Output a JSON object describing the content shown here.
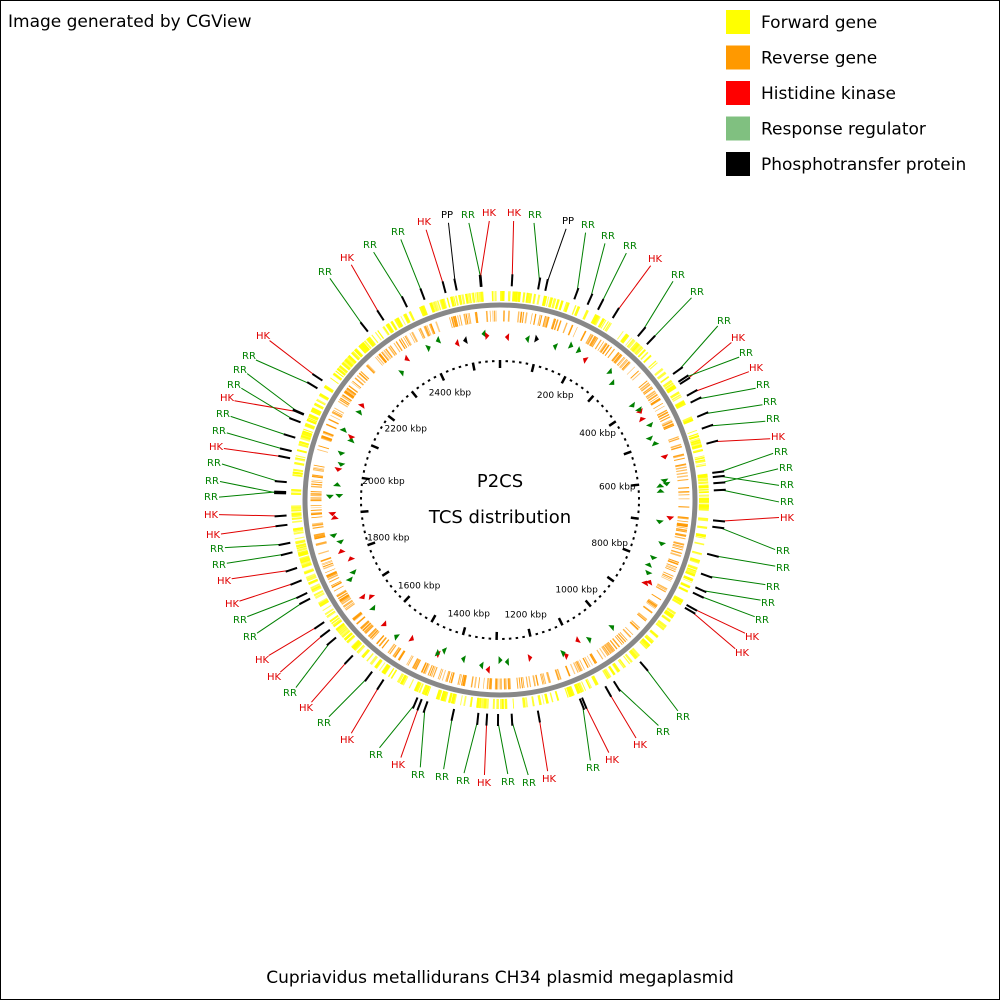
{
  "header": {
    "title": "Image generated by CGView"
  },
  "legend": [
    {
      "label": "Forward gene",
      "color": "#ffff00"
    },
    {
      "label": "Reverse gene",
      "color": "#ff9900"
    },
    {
      "label": "Histidine kinase",
      "color": "#ff0000"
    },
    {
      "label": "Response regulator",
      "color": "#80c080"
    },
    {
      "label": "Phosphotransfer protein",
      "color": "#000000"
    }
  ],
  "map": {
    "title": "P2CS",
    "subtitle": "TCS distribution",
    "scale_labels": [
      "200 kbp",
      "400 kbp",
      "600 kbp",
      "800 kbp",
      "1000 kbp",
      "1200 kbp",
      "1400 kbp",
      "1600 kbp",
      "1800 kbp",
      "2000 kbp",
      "2200 kbp",
      "2400 kbp"
    ],
    "feature_labels": [
      {
        "text": "RR",
        "color": "#008000"
      },
      {
        "text": "HK",
        "color": "#e00000"
      },
      {
        "text": "RR",
        "color": "#008000"
      },
      {
        "text": "RR",
        "color": "#008000"
      },
      {
        "text": "HK",
        "color": "#e00000"
      },
      {
        "text": "PP",
        "color": "#000000"
      },
      {
        "text": "RR",
        "color": "#008000"
      },
      {
        "text": "HK",
        "color": "#e00000"
      },
      {
        "text": "HK",
        "color": "#e00000"
      },
      {
        "text": "RR",
        "color": "#008000"
      },
      {
        "text": "PP",
        "color": "#000000"
      },
      {
        "text": "RR",
        "color": "#008000"
      },
      {
        "text": "RR",
        "color": "#008000"
      },
      {
        "text": "RR",
        "color": "#008000"
      },
      {
        "text": "HK",
        "color": "#e00000"
      },
      {
        "text": "RR",
        "color": "#008000"
      },
      {
        "text": "RR",
        "color": "#008000"
      },
      {
        "text": "RR",
        "color": "#008000"
      },
      {
        "text": "HK",
        "color": "#e00000"
      },
      {
        "text": "RR",
        "color": "#008000"
      },
      {
        "text": "HK",
        "color": "#e00000"
      },
      {
        "text": "RR",
        "color": "#008000"
      },
      {
        "text": "RR",
        "color": "#008000"
      },
      {
        "text": "RR",
        "color": "#008000"
      },
      {
        "text": "HK",
        "color": "#e00000"
      },
      {
        "text": "RR",
        "color": "#008000"
      },
      {
        "text": "RR",
        "color": "#008000"
      },
      {
        "text": "RR",
        "color": "#008000"
      },
      {
        "text": "RR",
        "color": "#008000"
      },
      {
        "text": "HK",
        "color": "#e00000"
      },
      {
        "text": "RR",
        "color": "#008000"
      },
      {
        "text": "RR",
        "color": "#008000"
      },
      {
        "text": "RR",
        "color": "#008000"
      },
      {
        "text": "RR",
        "color": "#008000"
      },
      {
        "text": "RR",
        "color": "#008000"
      },
      {
        "text": "HK",
        "color": "#e00000"
      },
      {
        "text": "HK",
        "color": "#e00000"
      },
      {
        "text": "RR",
        "color": "#008000"
      },
      {
        "text": "RR",
        "color": "#008000"
      },
      {
        "text": "HK",
        "color": "#e00000"
      },
      {
        "text": "HK",
        "color": "#e00000"
      },
      {
        "text": "RR",
        "color": "#008000"
      },
      {
        "text": "HK",
        "color": "#e00000"
      },
      {
        "text": "RR",
        "color": "#008000"
      },
      {
        "text": "RR",
        "color": "#008000"
      },
      {
        "text": "HK",
        "color": "#e00000"
      },
      {
        "text": "RR",
        "color": "#008000"
      },
      {
        "text": "RR",
        "color": "#008000"
      },
      {
        "text": "RR",
        "color": "#008000"
      },
      {
        "text": "HK",
        "color": "#e00000"
      },
      {
        "text": "RR",
        "color": "#008000"
      },
      {
        "text": "HK",
        "color": "#e00000"
      },
      {
        "text": "RR",
        "color": "#008000"
      },
      {
        "text": "HK",
        "color": "#e00000"
      },
      {
        "text": "RR",
        "color": "#008000"
      },
      {
        "text": "HK",
        "color": "#e00000"
      },
      {
        "text": "HK",
        "color": "#e00000"
      },
      {
        "text": "RR",
        "color": "#008000"
      },
      {
        "text": "RR",
        "color": "#008000"
      },
      {
        "text": "HK",
        "color": "#e00000"
      },
      {
        "text": "HK",
        "color": "#e00000"
      },
      {
        "text": "RR",
        "color": "#008000"
      },
      {
        "text": "RR",
        "color": "#008000"
      },
      {
        "text": "HK",
        "color": "#e00000"
      },
      {
        "text": "HK",
        "color": "#e00000"
      },
      {
        "text": "RR",
        "color": "#008000"
      },
      {
        "text": "RR",
        "color": "#008000"
      },
      {
        "text": "RR",
        "color": "#008000"
      },
      {
        "text": "HK",
        "color": "#e00000"
      },
      {
        "text": "RR",
        "color": "#008000"
      },
      {
        "text": "RR",
        "color": "#008000"
      },
      {
        "text": "HK",
        "color": "#e00000"
      },
      {
        "text": "RR",
        "color": "#008000"
      },
      {
        "text": "RR",
        "color": "#008000"
      },
      {
        "text": "RR",
        "color": "#008000"
      },
      {
        "text": "HK",
        "color": "#e00000"
      }
    ]
  },
  "footer": {
    "caption": "Cupriavidus metallidurans CH34 plasmid megaplasmid"
  }
}
